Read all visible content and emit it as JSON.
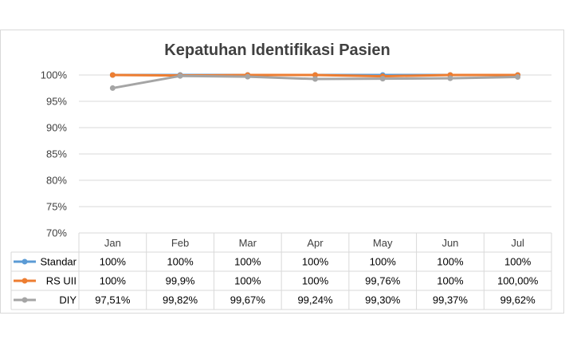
{
  "chart_data": {
    "type": "line",
    "title": "Kepatuhan Identifikasi Pasien",
    "categories": [
      "Jan",
      "Feb",
      "Mar",
      "Apr",
      "May",
      "Jun",
      "Jul"
    ],
    "ylim": [
      70,
      100
    ],
    "yticks": [
      "70%",
      "75%",
      "80%",
      "85%",
      "90%",
      "95%",
      "100%"
    ],
    "ytick_values": [
      70,
      75,
      80,
      85,
      90,
      95,
      100
    ],
    "grid": true,
    "legend": "data-table",
    "series": [
      {
        "name": "Standar",
        "color": "#5b9bd5",
        "values": [
          100,
          100,
          100,
          100,
          100,
          100,
          100
        ],
        "labels": [
          "100%",
          "100%",
          "100%",
          "100%",
          "100%",
          "100%",
          "100%"
        ]
      },
      {
        "name": "RS UII",
        "color": "#ed7d31",
        "values": [
          100,
          99.9,
          100,
          100,
          99.76,
          100,
          100.0
        ],
        "labels": [
          "100%",
          "99,9%",
          "100%",
          "100%",
          "99,76%",
          "100%",
          "100,00%"
        ]
      },
      {
        "name": "DIY",
        "color": "#a5a5a5",
        "values": [
          97.51,
          99.82,
          99.67,
          99.24,
          99.3,
          99.37,
          99.62
        ],
        "labels": [
          "97,51%",
          "99,82%",
          "99,67%",
          "99,24%",
          "99,30%",
          "99,37%",
          "99,62%"
        ]
      }
    ]
  }
}
